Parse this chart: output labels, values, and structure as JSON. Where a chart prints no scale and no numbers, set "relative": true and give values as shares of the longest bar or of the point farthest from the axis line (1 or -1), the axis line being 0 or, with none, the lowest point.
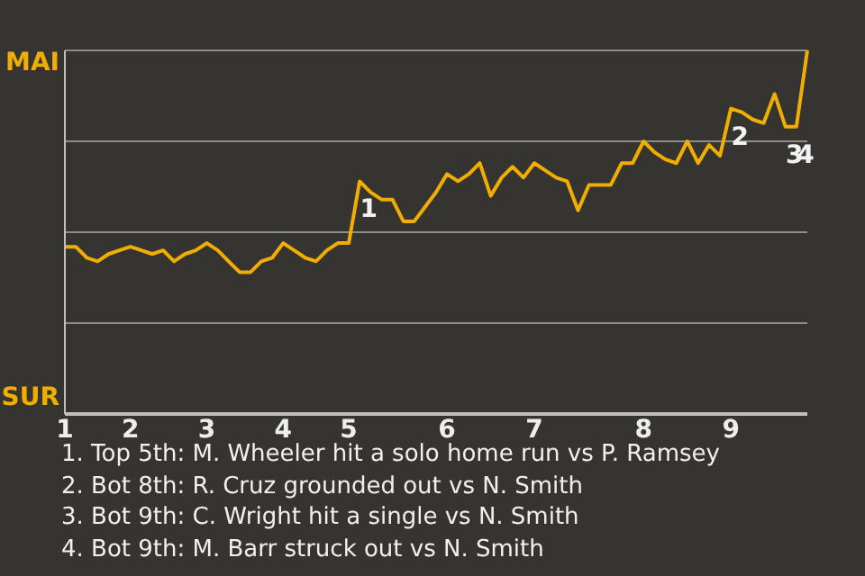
{
  "chart_data": {
    "type": "line",
    "relative": true,
    "categories": [
      "1",
      null,
      null,
      null,
      null,
      null,
      "2",
      null,
      null,
      null,
      null,
      null,
      null,
      "3",
      null,
      null,
      null,
      null,
      null,
      null,
      "4",
      null,
      null,
      null,
      null,
      null,
      "5",
      null,
      null,
      null,
      null,
      null,
      null,
      null,
      null,
      "6",
      null,
      null,
      null,
      null,
      null,
      null,
      null,
      "7",
      null,
      null,
      null,
      null,
      null,
      null,
      null,
      null,
      null,
      "8",
      null,
      null,
      null,
      null,
      null,
      null,
      null,
      "9",
      null,
      null,
      null,
      null,
      null,
      null,
      null
    ],
    "series": [
      {
        "color": "#f0ae00",
        "values": [
          0.46,
          0.46,
          0.43,
          0.42,
          0.44,
          0.45,
          0.46,
          0.45,
          0.44,
          0.45,
          0.42,
          0.44,
          0.45,
          0.47,
          0.45,
          0.42,
          0.39,
          0.39,
          0.42,
          0.43,
          0.47,
          0.45,
          0.43,
          0.42,
          0.45,
          0.47,
          0.47,
          0.64,
          0.61,
          0.59,
          0.59,
          0.53,
          0.53,
          0.57,
          0.61,
          0.66,
          0.64,
          0.66,
          0.69,
          0.6,
          0.65,
          0.68,
          0.65,
          0.69,
          0.67,
          0.65,
          0.64,
          0.56,
          0.63,
          0.63,
          0.63,
          0.69,
          0.69,
          0.75,
          0.72,
          0.7,
          0.69,
          0.75,
          0.69,
          0.74,
          0.71,
          0.84,
          0.83,
          0.81,
          0.8,
          0.88,
          0.79,
          0.79,
          1
        ]
      }
    ],
    "grid": "y",
    "marker": "none",
    "annotations": [
      "MAI",
      "SUR",
      {
        "text": "1",
        "y": 0.64
      },
      {
        "text": "2",
        "y": 0.84
      },
      {
        "text": "3",
        "y": 0.79
      },
      {
        "text": "4",
        "y": 0.79
      },
      "1. Top 5th: M. Wheeler hit a solo home run vs P. Ramsey",
      "2. Bot 8th: R. Cruz grounded out vs N. Smith",
      "3. Bot 9th: C. Wright hit a single vs N. Smith",
      "4. Bot 9th: M. Barr struck out vs N. Smith"
    ]
  }
}
